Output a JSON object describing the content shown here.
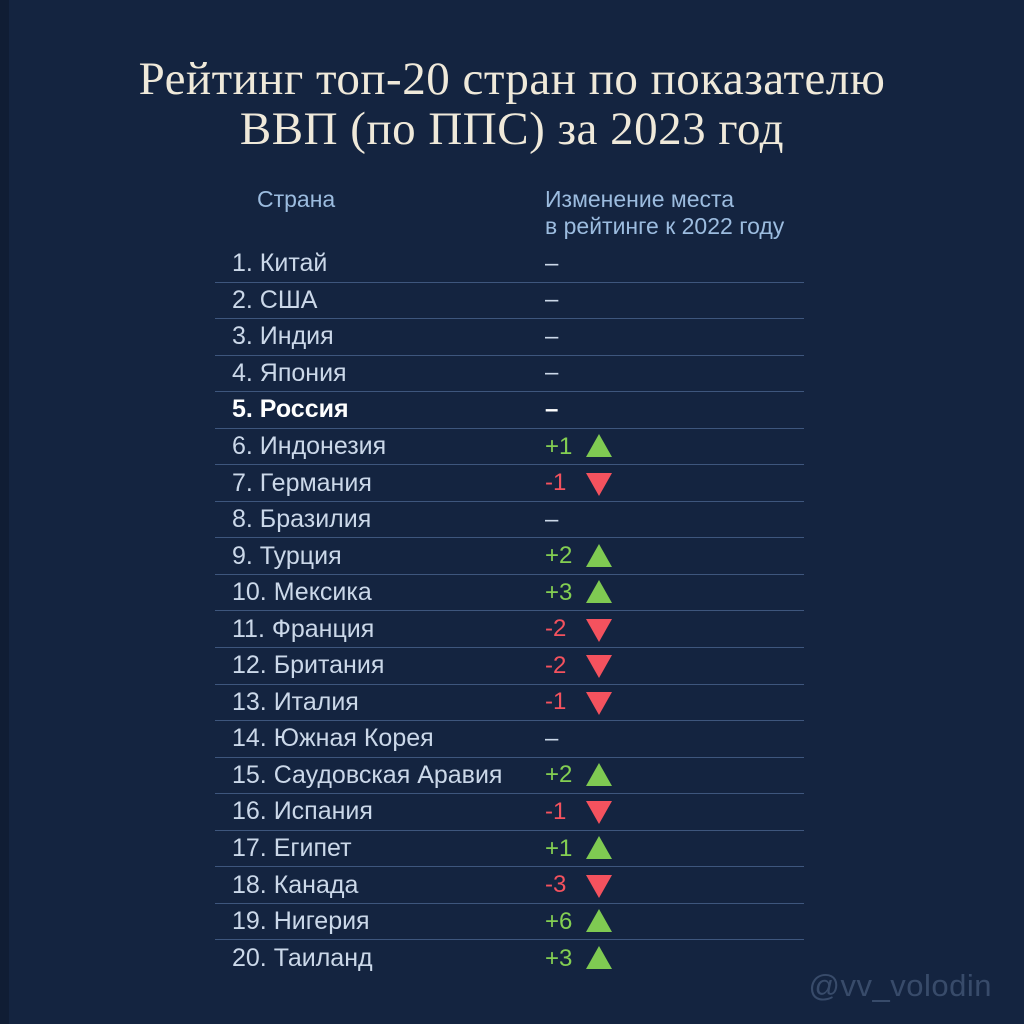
{
  "title": {
    "line1": "Рейтинг топ-20 стран по показателю",
    "line2": "ВВП (по ППС) за 2023 год"
  },
  "table": {
    "header": {
      "country": "Страна",
      "change_line1": "Изменение места",
      "change_line2": "в рейтинге к 2022 году"
    },
    "rows": [
      {
        "label": "1. Китай",
        "change": "–",
        "direction": "none",
        "highlight": false
      },
      {
        "label": "2. США",
        "change": "–",
        "direction": "none",
        "highlight": false
      },
      {
        "label": "3. Индия",
        "change": "–",
        "direction": "none",
        "highlight": false
      },
      {
        "label": "4. Япония",
        "change": "–",
        "direction": "none",
        "highlight": false
      },
      {
        "label": "5. Россия",
        "change": "–",
        "direction": "none",
        "highlight": true
      },
      {
        "label": "6. Индонезия",
        "change": "+1",
        "direction": "up",
        "highlight": false
      },
      {
        "label": "7. Германия",
        "change": "-1",
        "direction": "down",
        "highlight": false
      },
      {
        "label": "8. Бразилия",
        "change": "–",
        "direction": "none",
        "highlight": false
      },
      {
        "label": "9. Турция",
        "change": "+2",
        "direction": "up",
        "highlight": false
      },
      {
        "label": "10. Мексика",
        "change": "+3",
        "direction": "up",
        "highlight": false
      },
      {
        "label": "11. Франция",
        "change": "-2",
        "direction": "down",
        "highlight": false
      },
      {
        "label": "12. Британия",
        "change": "-2",
        "direction": "down",
        "highlight": false
      },
      {
        "label": "13. Италия",
        "change": "-1",
        "direction": "down",
        "highlight": false
      },
      {
        "label": "14. Южная Корея",
        "change": "–",
        "direction": "none",
        "highlight": false
      },
      {
        "label": "15. Саудовская Аравия",
        "change": "+2",
        "direction": "up",
        "highlight": false
      },
      {
        "label": "16. Испания",
        "change": "-1",
        "direction": "down",
        "highlight": false
      },
      {
        "label": "17. Египет",
        "change": "+1",
        "direction": "up",
        "highlight": false
      },
      {
        "label": "18. Канада",
        "change": "-3",
        "direction": "down",
        "highlight": false
      },
      {
        "label": "19. Нигерия",
        "change": "+6",
        "direction": "up",
        "highlight": false
      },
      {
        "label": "20. Таиланд",
        "change": "+3",
        "direction": "up",
        "highlight": false
      }
    ]
  },
  "watermark": "@vv_volodin",
  "colors": {
    "background": "#142440",
    "title_text": "#efe9da",
    "header_text": "#9cbcdf",
    "row_text": "#cbd8e9",
    "highlight_text": "#ffffff",
    "up_green": "#7fca52",
    "down_red": "#f4525e",
    "separator": "#4a6globala"
  },
  "chart_data": {
    "type": "table",
    "title": "Рейтинг топ-20 стран по показателю ВВП (по ППС) за 2023 год",
    "columns": [
      "Страна",
      "Изменение места в рейтинге к 2022 году"
    ],
    "rows": [
      {
        "rank": 1,
        "country": "Китай",
        "change": 0
      },
      {
        "rank": 2,
        "country": "США",
        "change": 0
      },
      {
        "rank": 3,
        "country": "Индия",
        "change": 0
      },
      {
        "rank": 4,
        "country": "Япония",
        "change": 0
      },
      {
        "rank": 5,
        "country": "Россия",
        "change": 0
      },
      {
        "rank": 6,
        "country": "Индонезия",
        "change": 1
      },
      {
        "rank": 7,
        "country": "Германия",
        "change": -1
      },
      {
        "rank": 8,
        "country": "Бразилия",
        "change": 0
      },
      {
        "rank": 9,
        "country": "Турция",
        "change": 2
      },
      {
        "rank": 10,
        "country": "Мексика",
        "change": 3
      },
      {
        "rank": 11,
        "country": "Франция",
        "change": -2
      },
      {
        "rank": 12,
        "country": "Британия",
        "change": -2
      },
      {
        "rank": 13,
        "country": "Италия",
        "change": -1
      },
      {
        "rank": 14,
        "country": "Южная Корея",
        "change": 0
      },
      {
        "rank": 15,
        "country": "Саудовская Аравия",
        "change": 2
      },
      {
        "rank": 16,
        "country": "Испания",
        "change": -1
      },
      {
        "rank": 17,
        "country": "Египет",
        "change": 1
      },
      {
        "rank": 18,
        "country": "Канада",
        "change": -3
      },
      {
        "rank": 19,
        "country": "Нигерия",
        "change": 6
      },
      {
        "rank": 20,
        "country": "Таиланд",
        "change": 3
      }
    ]
  }
}
